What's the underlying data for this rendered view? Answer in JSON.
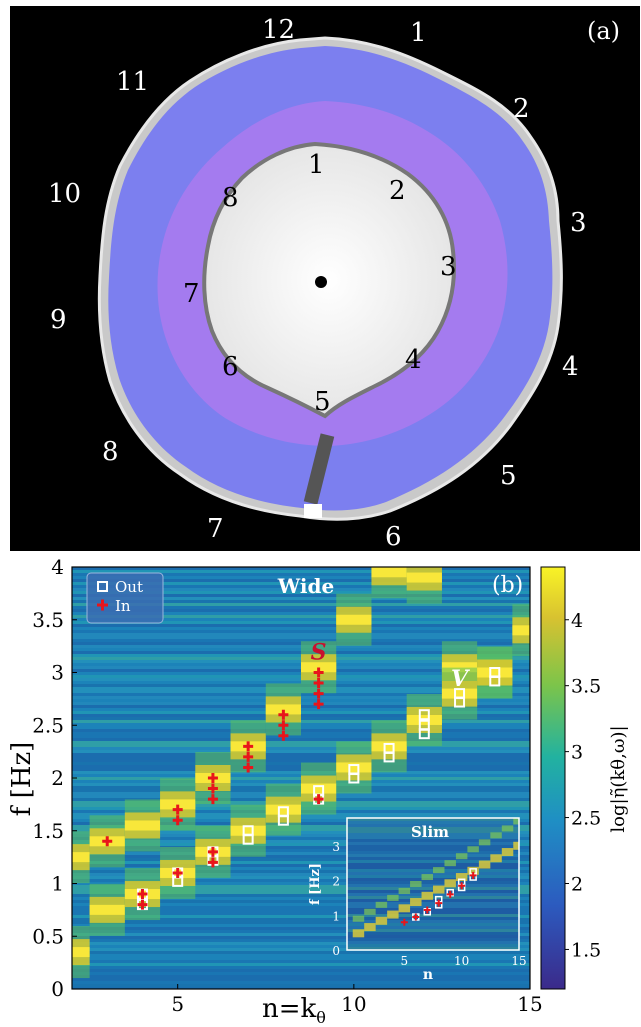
{
  "panel_a": {
    "label": "(a)",
    "outer_clock_numbers": [
      "12",
      "1",
      "2",
      "3",
      "4",
      "5",
      "6",
      "7",
      "8",
      "9",
      "10",
      "11"
    ],
    "inner_clock_numbers": [
      "1",
      "2",
      "3",
      "4",
      "5",
      "6",
      "7",
      "8"
    ],
    "colors": {
      "background": "#000000",
      "outer_band": "#7d80f0",
      "inner_band": "#a57cf0",
      "center": "#f2f2f2",
      "rim": "#c9c9c9"
    }
  },
  "chart_data": {
    "type": "heatmap",
    "panel_label": "(b)",
    "title": "Wide",
    "xlabel": "n=k",
    "xlabel_sub": "θ",
    "ylabel": "f [Hz]",
    "xlim": [
      2,
      15
    ],
    "ylim": [
      0,
      4
    ],
    "xticks": [
      5,
      10,
      15
    ],
    "yticks": [
      0,
      0.5,
      1,
      1.5,
      2,
      2.5,
      3,
      3.5,
      4
    ],
    "ytick_labels": [
      "0",
      "0.5",
      "1",
      "1.5",
      "2",
      "2.5",
      "3",
      "3.5",
      "4"
    ],
    "colorbar": {
      "label": "log|η̃(kθ,ω)|",
      "range": [
        1.2,
        4.4
      ],
      "ticks": [
        1.5,
        2,
        2.5,
        3,
        3.5,
        4
      ],
      "tick_labels": [
        "1.5",
        "2",
        "2.5",
        "3",
        "3.5",
        "4"
      ],
      "colormap": "viridis"
    },
    "legend": {
      "placement": "top-left",
      "entries": [
        {
          "label": "Out",
          "marker": "square",
          "color": "#ffffff"
        },
        {
          "label": "In",
          "marker": "plus",
          "color": "#e8151b"
        }
      ]
    },
    "annotations": [
      {
        "text": "S",
        "x": 9,
        "y": 3.2,
        "color": "#c8102e"
      },
      {
        "text": "V",
        "x": 13,
        "y": 2.95,
        "color": "#ffffff"
      }
    ],
    "series": [
      {
        "name": "Out",
        "marker": "square",
        "color": "#ffffff",
        "x": [
          4,
          4,
          5,
          5,
          6,
          6,
          7,
          7,
          8,
          8,
          9,
          9,
          10,
          10,
          11,
          11,
          12,
          12,
          12,
          13,
          13,
          14,
          14
        ],
        "y": [
          0.9,
          0.8,
          1.1,
          1.02,
          1.3,
          1.22,
          1.5,
          1.42,
          1.68,
          1.6,
          1.88,
          1.8,
          2.08,
          2.0,
          2.28,
          2.2,
          2.6,
          2.5,
          2.42,
          2.8,
          2.72,
          3.0,
          2.92
        ]
      },
      {
        "name": "In",
        "marker": "plus",
        "color": "#e8151b",
        "x": [
          3,
          4,
          4,
          5,
          5,
          5,
          6,
          6,
          6,
          6,
          6,
          7,
          7,
          7,
          8,
          8,
          8,
          9,
          9,
          9,
          9,
          9
        ],
        "y": [
          1.4,
          0.9,
          0.8,
          1.1,
          1.7,
          1.6,
          1.3,
          1.2,
          2.0,
          1.9,
          1.8,
          2.3,
          2.2,
          2.1,
          2.6,
          2.5,
          2.4,
          3.0,
          2.9,
          2.8,
          2.7,
          1.8
        ]
      }
    ],
    "ridges": [
      {
        "branch": "upper",
        "x": [
          2,
          3,
          4,
          5,
          6,
          7,
          8,
          9,
          10,
          11,
          12,
          13,
          14,
          15
        ],
        "y": [
          1.25,
          1.4,
          1.55,
          1.75,
          2.0,
          2.3,
          2.65,
          3.05,
          3.5,
          3.95,
          3.9,
          3.05,
          3.0,
          3.4
        ]
      },
      {
        "branch": "lower",
        "x": [
          2,
          3,
          4,
          5,
          6,
          7,
          8,
          9,
          10,
          11,
          12,
          13,
          14
        ],
        "y": [
          0.35,
          0.75,
          0.9,
          1.1,
          1.3,
          1.5,
          1.7,
          1.9,
          2.1,
          2.3,
          2.55,
          2.8,
          3.0
        ]
      }
    ],
    "inset": {
      "title": "Slim",
      "xlabel": "n",
      "ylabel": "f [Hz]",
      "xlim": [
        0,
        15
      ],
      "ylim": [
        0,
        3.8
      ],
      "xticks": [
        5,
        10,
        15
      ],
      "yticks": [
        0,
        1,
        2,
        3
      ],
      "ytick_labels": [
        "0",
        "1",
        "2",
        "3"
      ],
      "series": [
        {
          "name": "Out",
          "x": [
            6,
            7,
            8,
            8,
            9,
            10,
            10,
            11,
            11
          ],
          "y": [
            0.95,
            1.1,
            1.3,
            1.45,
            1.65,
            1.8,
            1.95,
            2.1,
            2.25
          ]
        },
        {
          "name": "In",
          "x": [
            5,
            6,
            7,
            8,
            9,
            10,
            11
          ],
          "y": [
            0.8,
            0.95,
            1.15,
            1.35,
            1.6,
            1.85,
            2.15
          ]
        }
      ]
    }
  }
}
